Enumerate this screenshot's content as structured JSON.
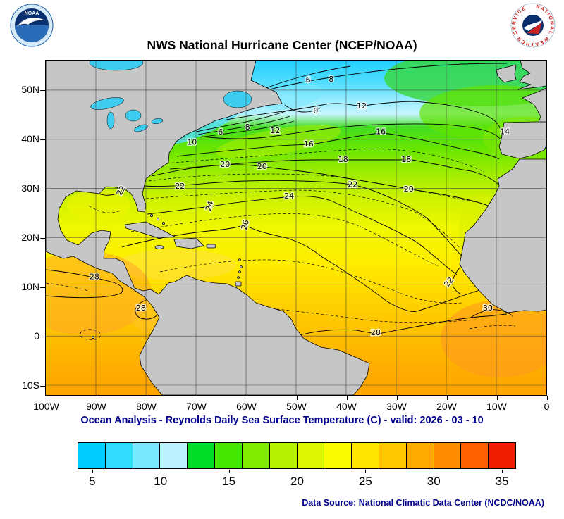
{
  "header": {
    "title": "NWS National Hurricane Center (NCEP/NOAA)",
    "noaa_logo_text": "NOAA",
    "nws_logo_text": "NATIONAL WEATHER SERVICE"
  },
  "caption": "Ocean Analysis - Reynolds Daily Sea Surface Temperature (C) - valid: 2026 - 03 - 10",
  "footer": {
    "data_source": "Data Source: National Climatic Data Center (NCDC/NOAA)"
  },
  "colors": {
    "caption_text": "#00008B",
    "land": "#C6C6C6",
    "lakes": "#3ECDEF",
    "grid": "#3C3C3C"
  },
  "chart_data": {
    "type": "heatmap",
    "subtype": "filled_contour_sea_surface_temperature_map",
    "title": "NWS National Hurricane Center (NCEP/NOAA)",
    "caption": "Ocean Analysis - Reynolds Daily Sea Surface Temperature (C) - valid: 2026 - 03 - 10",
    "units": "C",
    "valid_date": "2026 - 03 - 10",
    "grid": true,
    "region": {
      "lon_min": -100,
      "lon_max": 0,
      "lat_max": 56,
      "lat_min": -12
    },
    "x_axis": {
      "ticks": [
        {
          "label": "100W",
          "lon": -100
        },
        {
          "label": "90W",
          "lon": -90
        },
        {
          "label": "80W",
          "lon": -80
        },
        {
          "label": "70W",
          "lon": -70
        },
        {
          "label": "60W",
          "lon": -60
        },
        {
          "label": "50W",
          "lon": -50
        },
        {
          "label": "40W",
          "lon": -40
        },
        {
          "label": "30W",
          "lon": -30
        },
        {
          "label": "20W",
          "lon": -20
        },
        {
          "label": "10W",
          "lon": -10
        },
        {
          "label": "0",
          "lon": 0
        }
      ]
    },
    "y_axis": {
      "ticks": [
        {
          "label": "50N",
          "lat": 50
        },
        {
          "label": "40N",
          "lat": 40
        },
        {
          "label": "30N",
          "lat": 30
        },
        {
          "label": "20N",
          "lat": 20
        },
        {
          "label": "10N",
          "lat": 10
        },
        {
          "label": "0",
          "lat": 0
        },
        {
          "label": "10S",
          "lat": -10
        }
      ]
    },
    "contour_interval_c": 2,
    "contour_labels": [
      {
        "value": "6",
        "lon": -47.6,
        "lat": 52.0
      },
      {
        "value": "8",
        "lon": -43.0,
        "lat": 52.1
      },
      {
        "value": "12",
        "lon": -36.9,
        "lat": 46.7
      },
      {
        "value": "0",
        "lon": -46.1,
        "lat": 45.7
      },
      {
        "value": "16",
        "lon": -33.1,
        "lat": 41.5
      },
      {
        "value": "14",
        "lon": -8.3,
        "lat": 41.5
      },
      {
        "value": "6",
        "lon": -65.1,
        "lat": 41.4
      },
      {
        "value": "8",
        "lon": -59.7,
        "lat": 42.4
      },
      {
        "value": "12",
        "lon": -54.2,
        "lat": 41.7
      },
      {
        "value": "10",
        "lon": -70.8,
        "lat": 39.3
      },
      {
        "value": "16",
        "lon": -47.5,
        "lat": 39.0
      },
      {
        "value": "18",
        "lon": -40.6,
        "lat": 35.8
      },
      {
        "value": "18",
        "lon": -28.0,
        "lat": 35.8
      },
      {
        "value": "20",
        "lon": -64.2,
        "lat": 34.8
      },
      {
        "value": "20",
        "lon": -56.8,
        "lat": 34.4
      },
      {
        "value": "22",
        "lon": -73.2,
        "lat": 30.4
      },
      {
        "value": "22",
        "lon": -38.7,
        "lat": 30.7
      },
      {
        "value": "20",
        "lon": -27.5,
        "lat": 29.8
      },
      {
        "value": "22",
        "lon": -84.9,
        "lat": 29.5,
        "rot": -60
      },
      {
        "value": "24",
        "lon": -67.2,
        "lat": 26.4,
        "rot": -70
      },
      {
        "value": "24",
        "lon": -51.4,
        "lat": 28.4
      },
      {
        "value": "26",
        "lon": -60.1,
        "lat": 22.6,
        "rot": -75
      },
      {
        "value": "28",
        "lon": -90.3,
        "lat": 12.0
      },
      {
        "value": "28",
        "lon": -81.0,
        "lat": 5.6
      },
      {
        "value": "22",
        "lon": -19.4,
        "lat": 10.9,
        "rot": -50
      },
      {
        "value": "30",
        "lon": -11.7,
        "lat": 5.6
      },
      {
        "value": "28",
        "lon": -34.1,
        "lat": 0.6
      }
    ],
    "colorbar": {
      "min": 4,
      "max": 36,
      "step": 2,
      "ticks": [
        5,
        10,
        15,
        20,
        25,
        30,
        35
      ],
      "colors": [
        "#00CCFF",
        "#33DCFF",
        "#78E9FF",
        "#BFF2FF",
        "#00DC28",
        "#46E600",
        "#82EB00",
        "#B4F000",
        "#DCF500",
        "#FAFA00",
        "#FFE600",
        "#FFC800",
        "#FFAA00",
        "#FF8C00",
        "#FF6000",
        "#F01E00"
      ]
    }
  }
}
